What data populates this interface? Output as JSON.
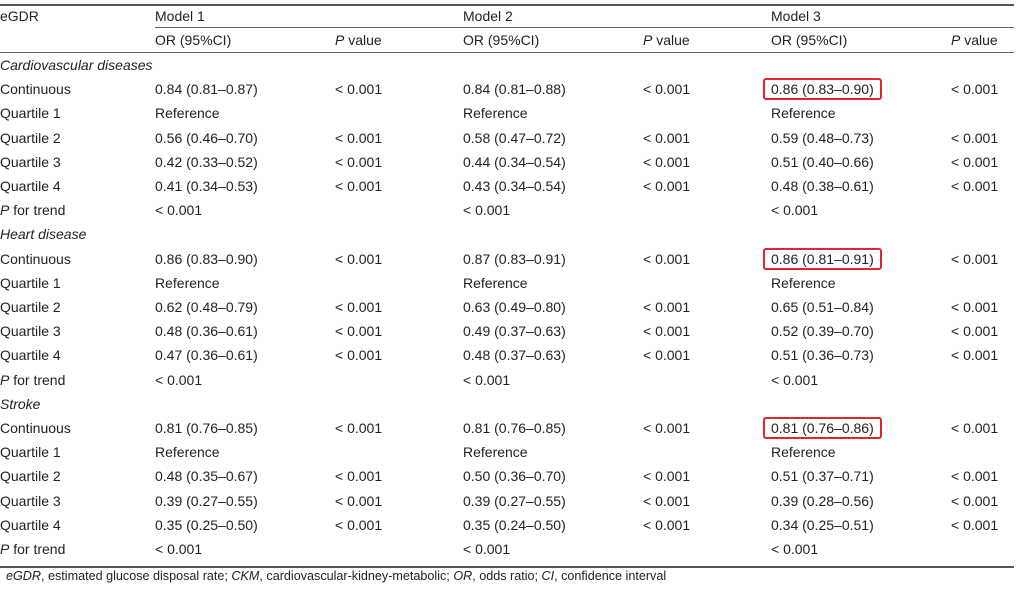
{
  "header": {
    "row_label": "eGDR",
    "models": [
      "Model 1",
      "Model 2",
      "Model 3"
    ],
    "or_label": "OR (95%CI)",
    "p_label_italic": "P",
    "p_label_rest": " value"
  },
  "sections": [
    {
      "title": "Cardiovascular diseases",
      "rows": [
        {
          "label": "Continuous",
          "m1": "0.84 (0.81–0.87)",
          "p1": "< 0.001",
          "m2": "0.84 (0.81–0.88)",
          "p2": "< 0.001",
          "m3": "0.86 (0.83–0.90)",
          "p3": "< 0.001",
          "highlight": true
        },
        {
          "label": "Quartile 1",
          "m1": "Reference",
          "p1": "",
          "m2": "Reference",
          "p2": "",
          "m3": "Reference",
          "p3": ""
        },
        {
          "label": "Quartile 2",
          "m1": "0.56 (0.46–0.70)",
          "p1": "< 0.001",
          "m2": "0.58 (0.47–0.72)",
          "p2": "< 0.001",
          "m3": "0.59 (0.48–0.73)",
          "p3": "< 0.001"
        },
        {
          "label": "Quartile 3",
          "m1": "0.42 (0.33–0.52)",
          "p1": "< 0.001",
          "m2": "0.44 (0.34–0.54)",
          "p2": "< 0.001",
          "m3": "0.51 (0.40–0.66)",
          "p3": "< 0.001"
        },
        {
          "label": "Quartile 4",
          "m1": "0.41 (0.34–0.53)",
          "p1": "< 0.001",
          "m2": "0.43 (0.34–0.54)",
          "p2": "< 0.001",
          "m3": "0.48 (0.38–0.61)",
          "p3": "< 0.001"
        }
      ],
      "trend": {
        "label_italic": "P",
        "label_rest": " for trend",
        "m1": "< 0.001",
        "m2": "< 0.001",
        "m3": "< 0.001"
      }
    },
    {
      "title": "Heart disease",
      "rows": [
        {
          "label": "Continuous",
          "m1": "0.86 (0.83–0.90)",
          "p1": "< 0.001",
          "m2": "0.87 (0.83–0.91)",
          "p2": "< 0.001",
          "m3": "0.86 (0.81–0.91)",
          "p3": "< 0.001",
          "highlight": true
        },
        {
          "label": "Quartile 1",
          "m1": "Reference",
          "p1": "",
          "m2": "Reference",
          "p2": "",
          "m3": "Reference",
          "p3": ""
        },
        {
          "label": "Quartile 2",
          "m1": "0.62 (0.48–0.79)",
          "p1": "< 0.001",
          "m2": "0.63 (0.49–0.80)",
          "p2": "< 0.001",
          "m3": "0.65 (0.51–0.84)",
          "p3": "< 0.001"
        },
        {
          "label": "Quartile 3",
          "m1": "0.48 (0.36–0.61)",
          "p1": "< 0.001",
          "m2": "0.49 (0.37–0.63)",
          "p2": "< 0.001",
          "m3": "0.52 (0.39–0.70)",
          "p3": "< 0.001"
        },
        {
          "label": "Quartile 4",
          "m1": "0.47 (0.36–0.61)",
          "p1": "< 0.001",
          "m2": "0.48 (0.37–0.63)",
          "p2": "< 0.001",
          "m3": "0.51 (0.36–0.73)",
          "p3": "< 0.001"
        }
      ],
      "trend": {
        "label_italic": "P",
        "label_rest": " for trend",
        "m1": "< 0.001",
        "m2": "< 0.001",
        "m3": "< 0.001"
      }
    },
    {
      "title": "Stroke",
      "rows": [
        {
          "label": "Continuous",
          "m1": "0.81 (0.76–0.85)",
          "p1": "< 0.001",
          "m2": "0.81 (0.76–0.85)",
          "p2": "< 0.001",
          "m3": "0.81 (0.76–0.86)",
          "p3": "< 0.001",
          "highlight": true
        },
        {
          "label": "Quartile 1",
          "m1": "Reference",
          "p1": "",
          "m2": "Reference",
          "p2": "",
          "m3": "Reference",
          "p3": ""
        },
        {
          "label": "Quartile 2",
          "m1": "0.48 (0.35–0.67)",
          "p1": "< 0.001",
          "m2": "0.50 (0.36–0.70)",
          "p2": "< 0.001",
          "m3": "0.51 (0.37–0.71)",
          "p3": "< 0.001"
        },
        {
          "label": "Quartile 3",
          "m1": "0.39 (0.27–0.55)",
          "p1": "< 0.001",
          "m2": "0.39 (0.27–0.55)",
          "p2": "< 0.001",
          "m3": "0.39 (0.28–0.56)",
          "p3": "< 0.001"
        },
        {
          "label": "Quartile 4",
          "m1": "0.35 (0.25–0.50)",
          "p1": "< 0.001",
          "m2": "0.35 (0.24–0.50)",
          "p2": "< 0.001",
          "m3": "0.34 (0.25–0.51)",
          "p3": "< 0.001"
        }
      ],
      "trend": {
        "label_italic": "P",
        "label_rest": " for trend",
        "m1": "< 0.001",
        "m2": "< 0.001",
        "m3": "< 0.001"
      }
    }
  ],
  "footnote": [
    {
      "text": "eGDR",
      "italic": true
    },
    {
      "text": ", estimated glucose disposal rate; ",
      "italic": false
    },
    {
      "text": "CKM",
      "italic": true
    },
    {
      "text": ", cardiovascular-kidney-metabolic; ",
      "italic": false
    },
    {
      "text": "OR",
      "italic": true
    },
    {
      "text": ", odds ratio; ",
      "italic": false
    },
    {
      "text": "CI",
      "italic": true
    },
    {
      "text": ", confidence interval",
      "italic": false
    }
  ],
  "colors": {
    "highlight_box": "#e0262b",
    "rule": "#555555"
  }
}
